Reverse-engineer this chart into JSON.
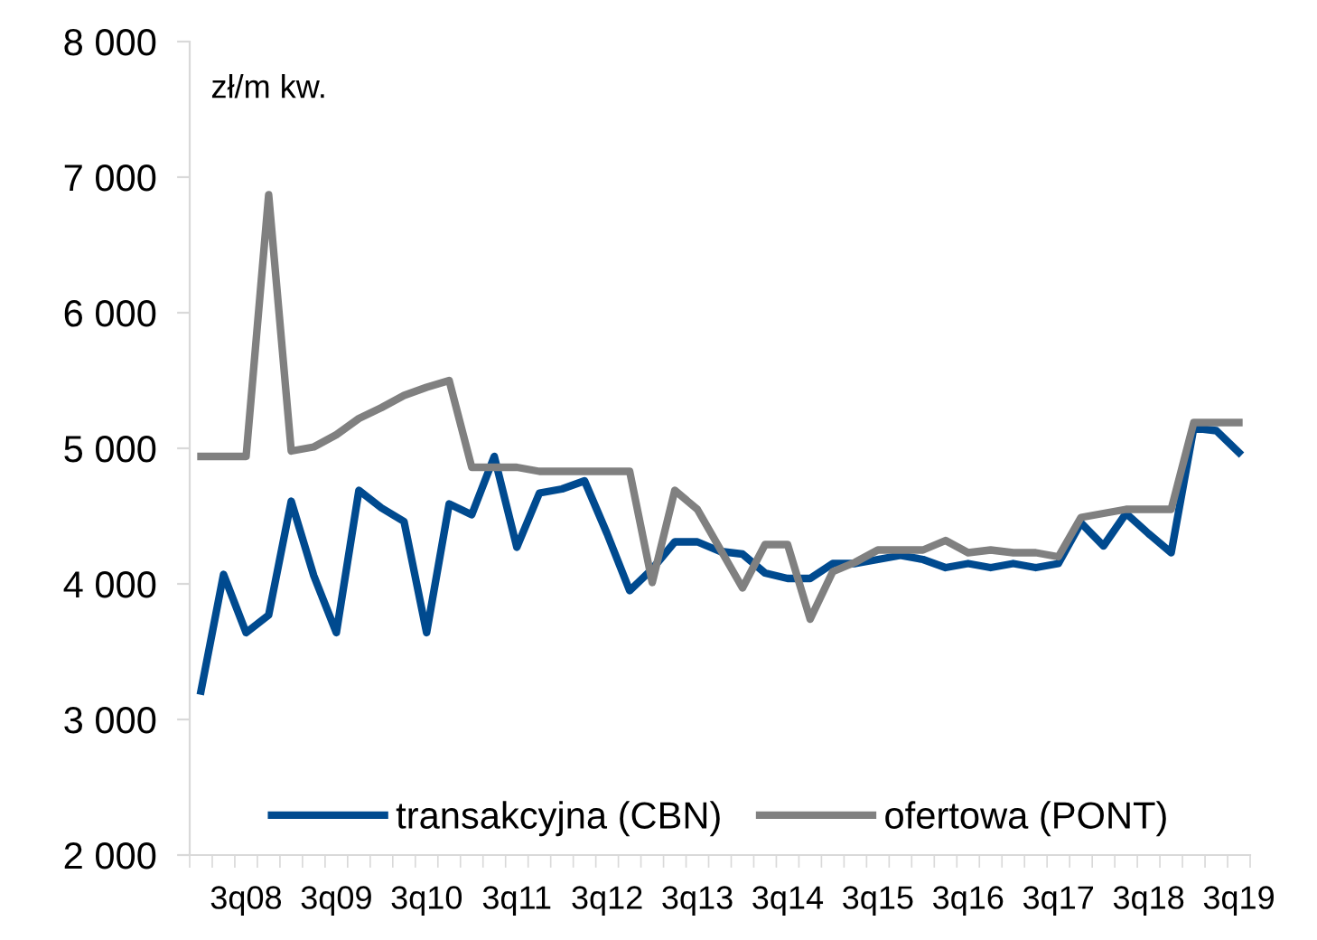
{
  "chart_data": {
    "type": "line",
    "categories": [
      null,
      null,
      "3q08",
      null,
      null,
      null,
      "3q09",
      null,
      null,
      null,
      "3q10",
      null,
      null,
      null,
      "3q11",
      null,
      null,
      null,
      "3q12",
      null,
      null,
      null,
      "3q13",
      null,
      null,
      null,
      "3q14",
      null,
      null,
      null,
      "3q15",
      null,
      null,
      null,
      "3q16",
      null,
      null,
      null,
      "3q17",
      null,
      null,
      null,
      "3q18",
      null,
      null,
      null,
      "3q19"
    ],
    "series": [
      {
        "name": "transakcyjna (CBN)",
        "color": "#004a8f",
        "values": [
          3210,
          4070,
          3640,
          3770,
          4610,
          4060,
          3640,
          4690,
          4560,
          4460,
          3640,
          4590,
          4510,
          4940,
          4270,
          4670,
          4700,
          4760,
          4370,
          3950,
          4110,
          4310,
          4310,
          4240,
          4220,
          4080,
          4040,
          4040,
          4150,
          4150,
          4180,
          4210,
          4180,
          4120,
          4150,
          4120,
          4150,
          4120,
          4150,
          4450,
          4280,
          4520,
          4370,
          4230,
          5150,
          5130,
          4970
        ]
      },
      {
        "name": "ofertowa (PONT)",
        "color": "#808080",
        "values": [
          4940,
          4940,
          4940,
          6870,
          4980,
          5010,
          5100,
          5220,
          5300,
          5390,
          5450,
          5500,
          4860,
          4860,
          4860,
          4830,
          4830,
          4830,
          4830,
          4830,
          4010,
          4690,
          4550,
          4260,
          3970,
          4290,
          4290,
          3740,
          4090,
          4160,
          4250,
          4250,
          4250,
          4320,
          4230,
          4250,
          4230,
          4230,
          4200,
          4490,
          4520,
          4550,
          4550,
          4550,
          5190,
          5190,
          5190
        ]
      }
    ],
    "ylim": [
      2000,
      8000
    ],
    "yticks": [
      {
        "value": 2000,
        "label": "2 000"
      },
      {
        "value": 3000,
        "label": "3 000"
      },
      {
        "value": 4000,
        "label": "4 000"
      },
      {
        "value": 5000,
        "label": "5 000"
      },
      {
        "value": 6000,
        "label": "6 000"
      },
      {
        "value": 7000,
        "label": "7 000"
      },
      {
        "value": 8000,
        "label": "8 000"
      }
    ],
    "annotations": [
      "zł/m kw."
    ],
    "grid": false,
    "legend": "bottom",
    "marker": "none",
    "line_style": "solid"
  }
}
